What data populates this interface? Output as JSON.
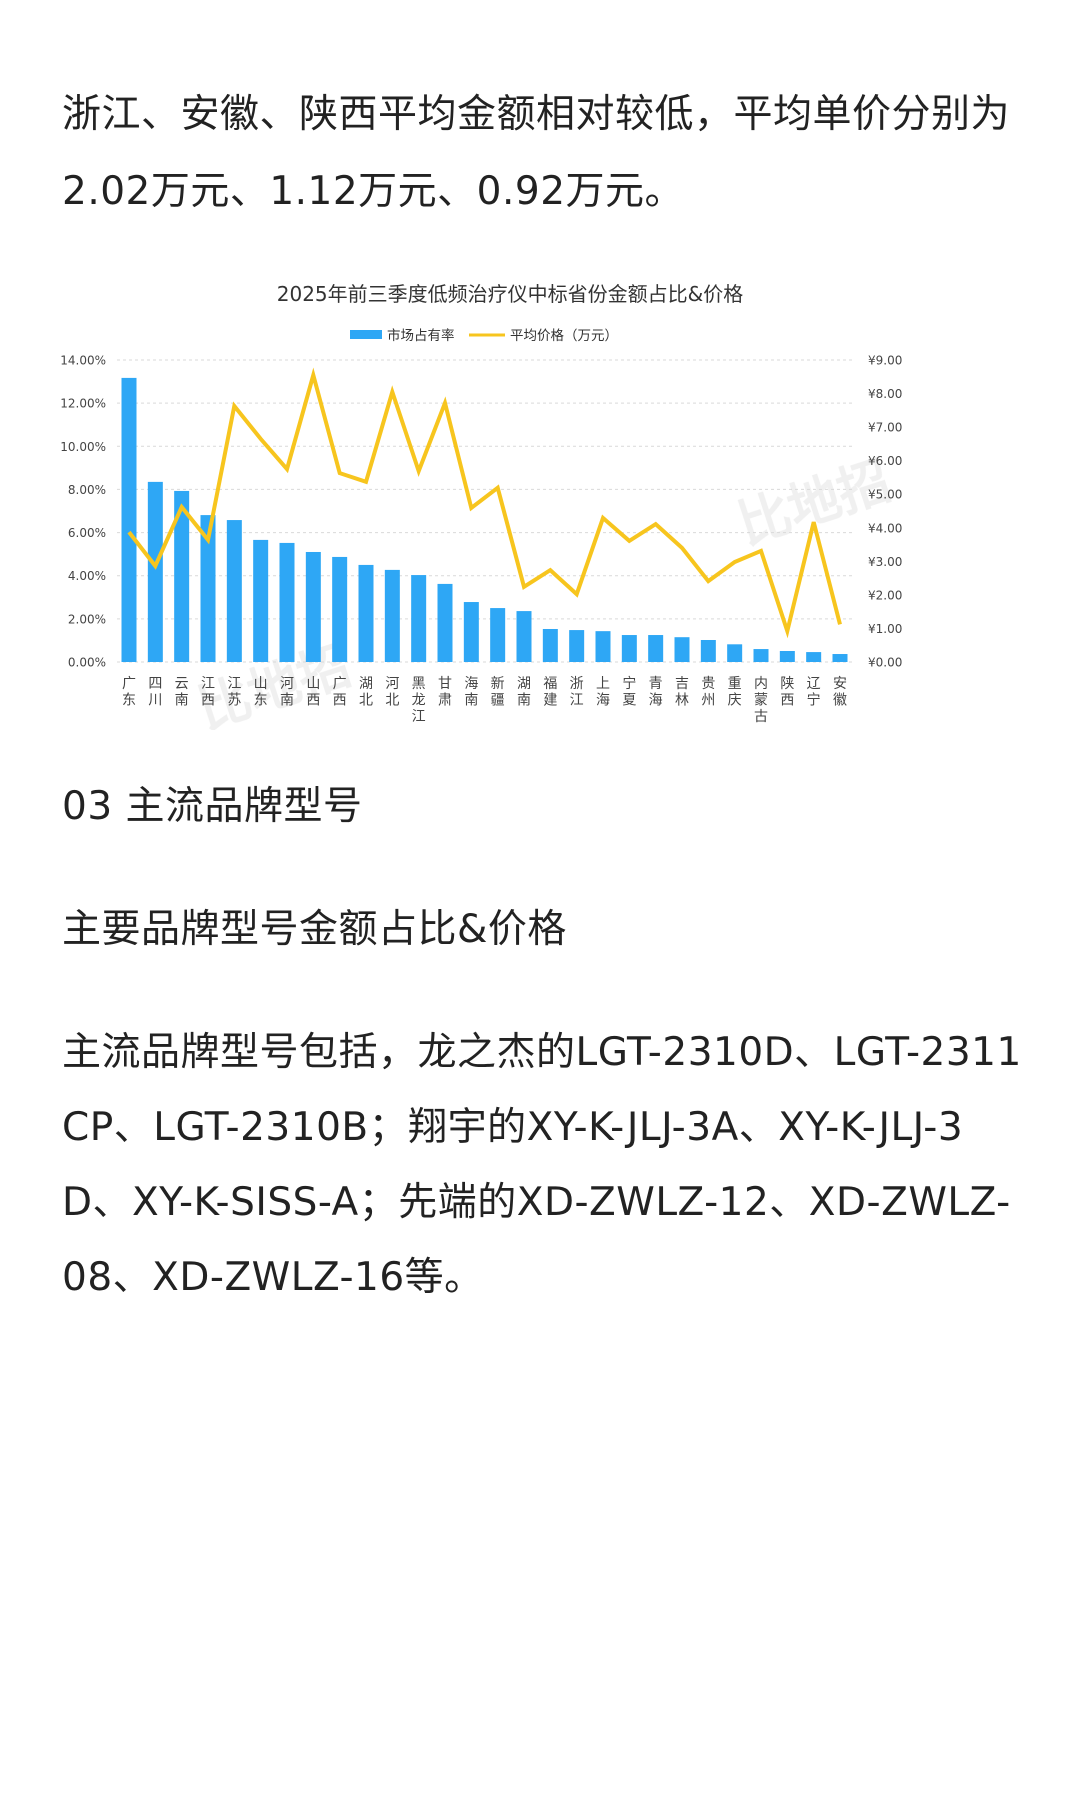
{
  "article": {
    "paragraph_1": "浙江、安徽、陕西平均金额相对较低，平均单价分别为2.02万元、1.12万元、0.92万元。",
    "section_heading": "03 主流品牌型号",
    "sub_heading": "主要品牌型号金额占比&价格",
    "paragraph_2": "主流品牌型号包括，龙之杰的LGT-2310D、LGT-2311CP、LGT-2310B；翔宇的XY-K-JLJ-3A、XY-K-JLJ-3D、XY-K-SISS-A；先端的XD-ZWLZ-12、XD-ZWLZ-08、XD-ZWLZ-16等。"
  },
  "watermark": "比地招",
  "colors": {
    "bar": "#2ea7f5",
    "line": "#f7c51e",
    "text": "#222222",
    "grid": "#d9d9d9",
    "axis_text": "#444444"
  },
  "chart_data": {
    "type": "bar+line",
    "title": "2025年前三季度低频治疗仪中标省份金额占比&价格",
    "legend": [
      "市场占有率",
      "平均价格（万元）"
    ],
    "legend_position": "top",
    "xlabel": "",
    "ylabel_left": "",
    "ylabel_right": "",
    "grid": true,
    "left_axis": {
      "ticks": [
        "0.00%",
        "2.00%",
        "4.00%",
        "6.00%",
        "8.00%",
        "10.00%",
        "12.00%",
        "14.00%"
      ],
      "ylim": [
        0,
        14
      ]
    },
    "right_axis": {
      "ticks": [
        "¥0.00",
        "¥1.00",
        "¥2.00",
        "¥3.00",
        "¥4.00",
        "¥5.00",
        "¥6.00",
        "¥7.00",
        "¥8.00",
        "¥9.00"
      ],
      "ylim": [
        0,
        9
      ]
    },
    "categories": [
      "广东",
      "四川",
      "云南",
      "江西",
      "江苏",
      "山东",
      "河南",
      "山西",
      "广西",
      "湖北",
      "河北",
      "黑龙江",
      "甘肃",
      "海南",
      "新疆",
      "湖南",
      "福建",
      "浙江",
      "上海",
      "宁夏",
      "青海",
      "吉林",
      "贵州",
      "重庆",
      "内蒙古",
      "陕西",
      "辽宁",
      "安徽"
    ],
    "series": [
      {
        "name": "市场占有率",
        "type": "bar",
        "axis": "left",
        "unit": "%",
        "values": [
          13.17,
          8.35,
          7.93,
          6.81,
          6.58,
          5.66,
          5.52,
          5.1,
          4.87,
          4.5,
          4.27,
          4.03,
          3.62,
          2.78,
          2.5,
          2.36,
          1.53,
          1.48,
          1.43,
          1.25,
          1.25,
          1.15,
          1.02,
          0.82,
          0.6,
          0.51,
          0.46,
          0.37
        ]
      },
      {
        "name": "平均价格（万元）",
        "type": "line",
        "axis": "right",
        "unit": "万元",
        "values": [
          3.87,
          2.86,
          4.62,
          3.64,
          7.63,
          6.65,
          5.75,
          8.55,
          5.63,
          5.37,
          8.05,
          5.69,
          7.72,
          4.59,
          5.19,
          2.24,
          2.74,
          2.02,
          4.29,
          3.61,
          4.11,
          3.4,
          2.41,
          2.98,
          3.31,
          0.92,
          4.17,
          1.12
        ]
      }
    ]
  }
}
